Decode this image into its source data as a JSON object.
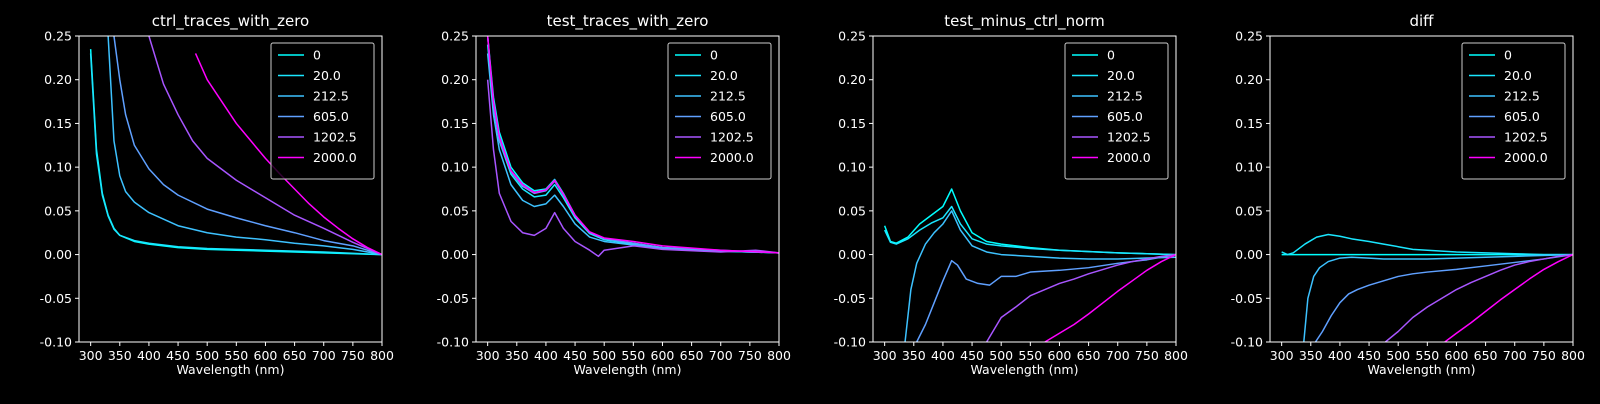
{
  "figure": {
    "background": "#000000",
    "foreground": "#ffffff"
  },
  "chart_data": [
    {
      "type": "line",
      "title": "ctrl_traces_with_zero",
      "xlabel": "Wavelength (nm)",
      "ylabel": "",
      "xlim": [
        280,
        800
      ],
      "ylim": [
        -0.1,
        0.25
      ],
      "xticks": [
        300,
        350,
        400,
        450,
        500,
        550,
        600,
        650,
        700,
        750,
        800
      ],
      "yticks": [
        -0.1,
        -0.05,
        0.0,
        0.05,
        0.1,
        0.15,
        0.2,
        0.25
      ],
      "grid": false,
      "legend": "top-right",
      "series": [
        {
          "name": "0",
          "color": "#00ffff",
          "x": [
            300,
            310,
            320,
            330,
            340,
            350,
            375,
            400,
            450,
            500,
            550,
            600,
            700,
            800
          ],
          "y": [
            0.235,
            0.12,
            0.07,
            0.045,
            0.03,
            0.022,
            0.015,
            0.012,
            0.008,
            0.006,
            0.005,
            0.004,
            0.002,
            0.0
          ]
        },
        {
          "name": "20.0",
          "color": "#1ae6ff",
          "x": [
            300,
            310,
            320,
            330,
            340,
            350,
            375,
            400,
            450,
            500,
            550,
            600,
            700,
            800
          ],
          "y": [
            0.23,
            0.115,
            0.068,
            0.044,
            0.029,
            0.022,
            0.016,
            0.013,
            0.009,
            0.007,
            0.006,
            0.005,
            0.003,
            0.0
          ]
        },
        {
          "name": "212.5",
          "color": "#3dc2ff",
          "x": [
            330,
            340,
            350,
            360,
            375,
            400,
            450,
            500,
            550,
            600,
            650,
            700,
            750,
            800
          ],
          "y": [
            0.25,
            0.13,
            0.09,
            0.072,
            0.06,
            0.048,
            0.033,
            0.025,
            0.02,
            0.017,
            0.013,
            0.01,
            0.006,
            0.0
          ]
        },
        {
          "name": "605.0",
          "color": "#5fa0ff",
          "x": [
            340,
            350,
            360,
            375,
            400,
            425,
            450,
            500,
            550,
            600,
            650,
            700,
            750,
            800
          ],
          "y": [
            0.25,
            0.2,
            0.16,
            0.125,
            0.098,
            0.08,
            0.068,
            0.052,
            0.042,
            0.033,
            0.025,
            0.016,
            0.01,
            0.0
          ]
        },
        {
          "name": "1202.5",
          "color": "#a855ff",
          "x": [
            400,
            425,
            450,
            475,
            500,
            550,
            600,
            650,
            700,
            750,
            800
          ],
          "y": [
            0.25,
            0.195,
            0.16,
            0.13,
            0.11,
            0.085,
            0.065,
            0.045,
            0.03,
            0.014,
            0.0
          ]
        },
        {
          "name": "2000.0",
          "color": "#ff00ff",
          "x": [
            480,
            500,
            525,
            550,
            575,
            600,
            625,
            650,
            675,
            700,
            725,
            750,
            775,
            800
          ],
          "y": [
            0.23,
            0.2,
            0.175,
            0.15,
            0.13,
            0.11,
            0.092,
            0.075,
            0.058,
            0.043,
            0.03,
            0.018,
            0.008,
            0.0
          ]
        }
      ]
    },
    {
      "type": "line",
      "title": "test_traces_with_zero",
      "xlabel": "Wavelength (nm)",
      "ylabel": "",
      "xlim": [
        280,
        800
      ],
      "ylim": [
        -0.1,
        0.25
      ],
      "xticks": [
        300,
        350,
        400,
        450,
        500,
        550,
        600,
        650,
        700,
        750,
        800
      ],
      "yticks": [
        -0.1,
        -0.05,
        0.0,
        0.05,
        0.1,
        0.15,
        0.2,
        0.25
      ],
      "grid": false,
      "legend": "top-right",
      "series": [
        {
          "name": "0",
          "color": "#00ffff",
          "x": [
            300,
            310,
            320,
            340,
            360,
            380,
            400,
            415,
            430,
            450,
            475,
            500,
            550,
            600,
            700,
            800
          ],
          "y": [
            0.25,
            0.18,
            0.14,
            0.1,
            0.082,
            0.073,
            0.075,
            0.086,
            0.07,
            0.045,
            0.025,
            0.018,
            0.013,
            0.008,
            0.004,
            0.002
          ]
        },
        {
          "name": "20.0",
          "color": "#1ae6ff",
          "x": [
            300,
            310,
            320,
            340,
            360,
            380,
            400,
            415,
            430,
            450,
            475,
            500,
            550,
            600,
            700,
            800
          ],
          "y": [
            0.24,
            0.17,
            0.13,
            0.092,
            0.075,
            0.066,
            0.068,
            0.08,
            0.065,
            0.042,
            0.024,
            0.017,
            0.012,
            0.008,
            0.004,
            0.002
          ]
        },
        {
          "name": "212.5",
          "color": "#3dc2ff",
          "x": [
            300,
            310,
            320,
            340,
            360,
            380,
            400,
            415,
            430,
            450,
            475,
            500,
            550,
            600,
            700,
            800
          ],
          "y": [
            0.23,
            0.16,
            0.12,
            0.08,
            0.062,
            0.055,
            0.058,
            0.068,
            0.055,
            0.035,
            0.02,
            0.015,
            0.011,
            0.007,
            0.004,
            0.002
          ]
        },
        {
          "name": "605.0",
          "color": "#5fa0ff",
          "x": [
            300,
            310,
            320,
            340,
            360,
            380,
            400,
            415,
            430,
            450,
            475,
            500,
            550,
            600,
            700,
            800
          ],
          "y": [
            0.25,
            0.17,
            0.13,
            0.095,
            0.078,
            0.07,
            0.073,
            0.084,
            0.068,
            0.044,
            0.025,
            0.018,
            0.013,
            0.008,
            0.005,
            0.002
          ]
        },
        {
          "name": "1202.5",
          "color": "#a855ff",
          "x": [
            300,
            310,
            320,
            340,
            360,
            380,
            400,
            415,
            430,
            450,
            475,
            490,
            500,
            550,
            600,
            700,
            760,
            800
          ],
          "y": [
            0.2,
            0.12,
            0.07,
            0.038,
            0.025,
            0.022,
            0.03,
            0.048,
            0.03,
            0.015,
            0.005,
            -0.002,
            0.005,
            0.01,
            0.006,
            0.003,
            0.005,
            0.002
          ]
        },
        {
          "name": "2000.0",
          "color": "#ff00ff",
          "x": [
            300,
            310,
            320,
            340,
            360,
            380,
            400,
            415,
            430,
            450,
            475,
            500,
            550,
            600,
            700,
            800
          ],
          "y": [
            0.25,
            0.175,
            0.135,
            0.096,
            0.08,
            0.071,
            0.074,
            0.085,
            0.069,
            0.045,
            0.026,
            0.019,
            0.015,
            0.01,
            0.005,
            0.002
          ]
        }
      ]
    },
    {
      "type": "line",
      "title": "test_minus_ctrl_norm",
      "xlabel": "Wavelength (nm)",
      "ylabel": "",
      "xlim": [
        280,
        800
      ],
      "ylim": [
        -0.1,
        0.25
      ],
      "xticks": [
        300,
        350,
        400,
        450,
        500,
        550,
        600,
        650,
        700,
        750,
        800
      ],
      "yticks": [
        -0.1,
        -0.05,
        0.0,
        0.05,
        0.1,
        0.15,
        0.2,
        0.25
      ],
      "grid": false,
      "legend": "top-right",
      "series": [
        {
          "name": "0",
          "color": "#00ffff",
          "x": [
            300,
            310,
            320,
            340,
            360,
            380,
            400,
            415,
            430,
            450,
            475,
            500,
            550,
            600,
            700,
            800
          ],
          "y": [
            0.033,
            0.015,
            0.013,
            0.02,
            0.035,
            0.045,
            0.055,
            0.075,
            0.05,
            0.025,
            0.015,
            0.012,
            0.008,
            0.005,
            0.002,
            0.0
          ]
        },
        {
          "name": "20.0",
          "color": "#1ae6ff",
          "x": [
            300,
            310,
            320,
            340,
            360,
            380,
            400,
            415,
            430,
            450,
            475,
            500,
            550,
            600,
            700,
            800
          ],
          "y": [
            0.028,
            0.014,
            0.012,
            0.018,
            0.028,
            0.036,
            0.042,
            0.055,
            0.035,
            0.018,
            0.012,
            0.01,
            0.007,
            0.005,
            0.002,
            0.0
          ]
        },
        {
          "name": "212.5",
          "color": "#3dc2ff",
          "x": [
            335,
            345,
            355,
            370,
            385,
            400,
            415,
            430,
            450,
            475,
            500,
            550,
            600,
            650,
            700,
            800
          ],
          "y": [
            -0.1,
            -0.04,
            -0.01,
            0.012,
            0.025,
            0.035,
            0.05,
            0.028,
            0.01,
            0.003,
            0.0,
            -0.002,
            -0.004,
            -0.005,
            -0.005,
            -0.003
          ]
        },
        {
          "name": "605.0",
          "color": "#5fa0ff",
          "x": [
            355,
            370,
            385,
            400,
            415,
            425,
            440,
            460,
            480,
            500,
            525,
            550,
            600,
            650,
            700,
            750,
            800
          ],
          "y": [
            -0.1,
            -0.08,
            -0.055,
            -0.03,
            -0.007,
            -0.012,
            -0.028,
            -0.033,
            -0.035,
            -0.025,
            -0.025,
            -0.02,
            -0.018,
            -0.015,
            -0.01,
            -0.006,
            0.0
          ]
        },
        {
          "name": "1202.5",
          "color": "#a855ff",
          "x": [
            475,
            500,
            525,
            550,
            575,
            600,
            625,
            650,
            675,
            700,
            725,
            750,
            775,
            800
          ],
          "y": [
            -0.1,
            -0.072,
            -0.06,
            -0.047,
            -0.04,
            -0.033,
            -0.028,
            -0.022,
            -0.017,
            -0.012,
            -0.008,
            -0.005,
            -0.002,
            0.0
          ]
        },
        {
          "name": "2000.0",
          "color": "#ff00ff",
          "x": [
            575,
            600,
            625,
            650,
            675,
            700,
            725,
            750,
            775,
            800
          ],
          "y": [
            -0.1,
            -0.09,
            -0.08,
            -0.068,
            -0.055,
            -0.042,
            -0.03,
            -0.018,
            -0.008,
            0.0
          ]
        }
      ]
    },
    {
      "type": "line",
      "title": "diff",
      "xlabel": "Wavelength (nm)",
      "ylabel": "",
      "xlim": [
        280,
        800
      ],
      "ylim": [
        -0.1,
        0.25
      ],
      "xticks": [
        300,
        350,
        400,
        450,
        500,
        550,
        600,
        650,
        700,
        750,
        800
      ],
      "yticks": [
        -0.1,
        -0.05,
        0.0,
        0.05,
        0.1,
        0.15,
        0.2,
        0.25
      ],
      "grid": false,
      "legend": "top-right",
      "series": [
        {
          "name": "0",
          "color": "#00ffff",
          "x": [
            300,
            800
          ],
          "y": [
            0.0,
            0.0
          ]
        },
        {
          "name": "20.0",
          "color": "#1ae6ff",
          "x": [
            300,
            310,
            320,
            340,
            360,
            380,
            400,
            420,
            450,
            475,
            500,
            525,
            550,
            600,
            650,
            700,
            750,
            800
          ],
          "y": [
            0.003,
            0.0,
            0.002,
            0.012,
            0.02,
            0.023,
            0.021,
            0.018,
            0.015,
            0.012,
            0.009,
            0.006,
            0.005,
            0.003,
            0.002,
            0.001,
            0.0,
            0.0
          ]
        },
        {
          "name": "212.5",
          "color": "#3dc2ff",
          "x": [
            338,
            345,
            355,
            365,
            380,
            400,
            420,
            450,
            475,
            500,
            525,
            550,
            600,
            650,
            700,
            800
          ],
          "y": [
            -0.1,
            -0.05,
            -0.025,
            -0.015,
            -0.008,
            -0.004,
            -0.003,
            -0.004,
            -0.005,
            -0.005,
            -0.005,
            -0.005,
            -0.004,
            -0.003,
            -0.002,
            0.0
          ]
        },
        {
          "name": "605.0",
          "color": "#5fa0ff",
          "x": [
            358,
            370,
            385,
            400,
            415,
            430,
            450,
            475,
            500,
            525,
            550,
            600,
            650,
            700,
            750,
            800
          ],
          "y": [
            -0.1,
            -0.088,
            -0.07,
            -0.055,
            -0.045,
            -0.04,
            -0.035,
            -0.03,
            -0.025,
            -0.022,
            -0.02,
            -0.017,
            -0.013,
            -0.009,
            -0.005,
            0.0
          ]
        },
        {
          "name": "1202.5",
          "color": "#a855ff",
          "x": [
            478,
            500,
            525,
            550,
            575,
            600,
            625,
            650,
            675,
            700,
            725,
            750,
            775,
            800
          ],
          "y": [
            -0.1,
            -0.088,
            -0.072,
            -0.06,
            -0.05,
            -0.04,
            -0.032,
            -0.025,
            -0.018,
            -0.012,
            -0.008,
            -0.005,
            -0.002,
            0.0
          ]
        },
        {
          "name": "2000.0",
          "color": "#ff00ff",
          "x": [
            580,
            600,
            625,
            650,
            675,
            700,
            725,
            750,
            775,
            800
          ],
          "y": [
            -0.1,
            -0.09,
            -0.078,
            -0.065,
            -0.052,
            -0.04,
            -0.028,
            -0.017,
            -0.008,
            0.0
          ]
        }
      ]
    }
  ]
}
